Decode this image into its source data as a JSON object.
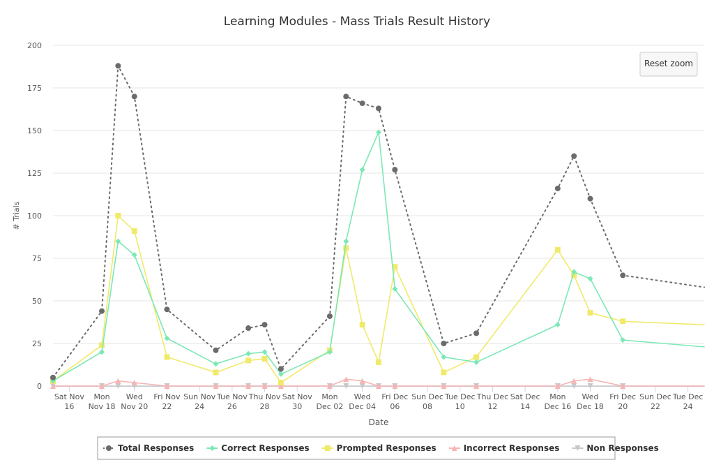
{
  "chart_data": {
    "type": "line",
    "title": "Learning Modules - Mass Trials Result History",
    "x_label": "Date",
    "y_label": "# Trials",
    "reset_button": "Reset zoom",
    "x": [
      "Nov 15",
      "Nov 18",
      "Nov 19",
      "Nov 20",
      "Nov 22",
      "Nov 25",
      "Nov 27",
      "Nov 28",
      "Nov 29",
      "Dec 02",
      "Dec 03",
      "Dec 04",
      "Dec 05",
      "Dec 06",
      "Dec 09",
      "Dec 11",
      "Dec 16",
      "Dec 17",
      "Dec 18",
      "Dec 20",
      "Dec 25"
    ],
    "xlim": [
      "Nov 15",
      "Dec 25"
    ],
    "xticks": [
      {
        "value": "Nov 16",
        "label": "Sat Nov 16"
      },
      {
        "value": "Nov 18",
        "label": "Mon Nov 18"
      },
      {
        "value": "Nov 20",
        "label": "Wed Nov 20"
      },
      {
        "value": "Nov 22",
        "label": "Fri Nov 22"
      },
      {
        "value": "Nov 24",
        "label": "Sun Nov 24"
      },
      {
        "value": "Nov 26",
        "label": "Tue Nov 26"
      },
      {
        "value": "Nov 28",
        "label": "Thu Nov 28"
      },
      {
        "value": "Nov 30",
        "label": "Sat Nov 30"
      },
      {
        "value": "Dec 02",
        "label": "Mon Dec 02"
      },
      {
        "value": "Dec 04",
        "label": "Wed Dec 04"
      },
      {
        "value": "Dec 06",
        "label": "Fri Dec 06"
      },
      {
        "value": "Dec 08",
        "label": "Sun Dec 08"
      },
      {
        "value": "Dec 10",
        "label": "Tue Dec 10"
      },
      {
        "value": "Dec 12",
        "label": "Thu Dec 12"
      },
      {
        "value": "Dec 14",
        "label": "Sat Dec 14"
      },
      {
        "value": "Dec 16",
        "label": "Mon Dec 16"
      },
      {
        "value": "Dec 18",
        "label": "Wed Dec 18"
      },
      {
        "value": "Dec 20",
        "label": "Fri Dec 20"
      },
      {
        "value": "Dec 22",
        "label": "Sun Dec 22"
      },
      {
        "value": "Dec 24",
        "label": "Tue Dec 24"
      }
    ],
    "ylim": [
      0,
      200
    ],
    "yticks": [
      0,
      25,
      50,
      75,
      100,
      125,
      150,
      175,
      200
    ],
    "grid": true,
    "legend": "bottom",
    "series": [
      {
        "name": "Total Responses",
        "color": "#6b6b6b",
        "marker": "circle",
        "dash": "dotted",
        "values": [
          5,
          44,
          188,
          170,
          45,
          21,
          34,
          36,
          10,
          41,
          170,
          166,
          163,
          127,
          25,
          31,
          116,
          135,
          110,
          65,
          58
        ]
      },
      {
        "name": "Correct Responses",
        "color": "#7ce8b5",
        "marker": "diamond",
        "dash": "solid",
        "values": [
          3,
          20,
          85,
          77,
          28,
          13,
          19,
          20,
          7,
          20,
          85,
          127,
          149,
          57,
          17,
          14,
          36,
          67,
          63,
          27,
          23
        ]
      },
      {
        "name": "Prompted Responses",
        "color": "#f0ea6b",
        "marker": "square",
        "dash": "solid",
        "values": [
          3,
          24,
          100,
          91,
          17,
          8,
          15,
          16,
          2,
          21,
          81,
          36,
          14,
          70,
          8,
          17,
          80,
          65,
          43,
          38,
          36
        ]
      },
      {
        "name": "Incorrect Responses",
        "color": "#f5b5b5",
        "marker": "triangle",
        "dash": "solid",
        "values": [
          0,
          0,
          3,
          2,
          0,
          0,
          0,
          0,
          0,
          0,
          4,
          3,
          0,
          0,
          0,
          0,
          0,
          3,
          4,
          0,
          0
        ]
      },
      {
        "name": "Non Responses",
        "color": "#c8c8c8",
        "marker": "triangle-down",
        "dash": "solid",
        "values": [
          0,
          0,
          0,
          0,
          0,
          0,
          0,
          0,
          0,
          0,
          0,
          0,
          0,
          0,
          0,
          0,
          0,
          0,
          0,
          0,
          0
        ]
      }
    ]
  }
}
